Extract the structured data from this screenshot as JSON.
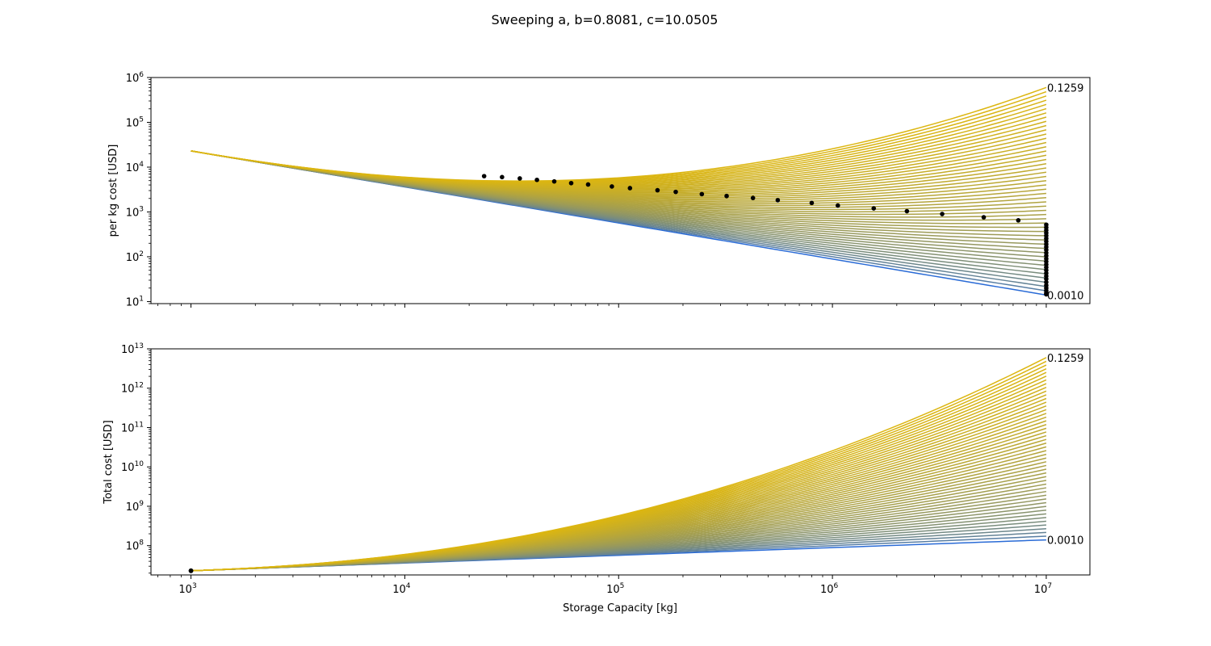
{
  "figure": {
    "title": "Sweeping a, b=0.8081, c=10.0505",
    "xlabel": "Storage Capacity [kg]"
  },
  "chart_data": [
    {
      "type": "line",
      "panel": "top",
      "ylabel": "per kg cost [USD]",
      "xscale": "log",
      "yscale": "log",
      "xlim": [
        650,
        16000000
      ],
      "ylim": [
        9,
        1000000
      ],
      "xticks": [
        {
          "base": "10",
          "exp": "3",
          "v": 1000
        },
        {
          "base": "10",
          "exp": "4",
          "v": 10000
        },
        {
          "base": "10",
          "exp": "5",
          "v": 100000
        },
        {
          "base": "10",
          "exp": "6",
          "v": 1000000
        },
        {
          "base": "10",
          "exp": "7",
          "v": 10000000
        }
      ],
      "yticks": [
        {
          "base": "10",
          "exp": "1",
          "v": 10
        },
        {
          "base": "10",
          "exp": "2",
          "v": 100
        },
        {
          "base": "10",
          "exp": "3",
          "v": 1000
        },
        {
          "base": "10",
          "exp": "4",
          "v": 10000
        },
        {
          "base": "10",
          "exp": "5",
          "v": 100000
        },
        {
          "base": "10",
          "exp": "6",
          "v": 1000000
        }
      ],
      "show_x_tick_labels": false,
      "annotations": [
        {
          "text": "0.1259",
          "x": 10000000,
          "y": 600000
        },
        {
          "text": "0.0010",
          "x": 10000000,
          "y": 14
        }
      ],
      "sweep": {
        "x_range": [
          1000,
          10000000
        ],
        "a_range": [
          0.001,
          0.1259
        ],
        "b": 0.8081,
        "c": 10.0505,
        "count": 50,
        "start_values": [
          23000,
          23000
        ],
        "end_values": [
          14,
          600000
        ],
        "color_low": "#2a6bd6",
        "color_high": "#dcb611"
      },
      "scatter": {
        "color": "#000000",
        "points": [
          [
            23500,
            6300
          ],
          [
            28500,
            6000
          ],
          [
            34500,
            5600
          ],
          [
            41500,
            5200
          ],
          [
            50000,
            4800
          ],
          [
            60000,
            4400
          ],
          [
            72000,
            4100
          ],
          [
            93000,
            3700
          ],
          [
            113000,
            3400
          ],
          [
            152000,
            3050
          ],
          [
            185000,
            2800
          ],
          [
            245000,
            2500
          ],
          [
            320000,
            2270
          ],
          [
            425000,
            2050
          ],
          [
            555000,
            1830
          ],
          [
            800000,
            1590
          ],
          [
            1060000,
            1390
          ],
          [
            1560000,
            1200
          ],
          [
            2230000,
            1040
          ],
          [
            3260000,
            900
          ],
          [
            5100000,
            760
          ],
          [
            7400000,
            650
          ],
          [
            10000000,
            520
          ],
          [
            10000000,
            450
          ],
          [
            10000000,
            390
          ],
          [
            10000000,
            340
          ],
          [
            10000000,
            295
          ],
          [
            10000000,
            255
          ],
          [
            10000000,
            220
          ],
          [
            10000000,
            190
          ],
          [
            10000000,
            165
          ],
          [
            10000000,
            142
          ],
          [
            10000000,
            122
          ],
          [
            10000000,
            105
          ],
          [
            10000000,
            90
          ],
          [
            10000000,
            78
          ],
          [
            10000000,
            67
          ],
          [
            10000000,
            58
          ],
          [
            10000000,
            50
          ],
          [
            10000000,
            43
          ],
          [
            10000000,
            37
          ],
          [
            10000000,
            32
          ],
          [
            10000000,
            27
          ],
          [
            10000000,
            23
          ],
          [
            10000000,
            20
          ],
          [
            10000000,
            17.5
          ],
          [
            10000000,
            15.5
          ],
          [
            10000000,
            14.5
          ]
        ]
      }
    },
    {
      "type": "line",
      "panel": "bottom",
      "ylabel": "Total cost [USD]",
      "xscale": "log",
      "yscale": "log",
      "xlim": [
        650,
        16000000
      ],
      "ylim": [
        18000000,
        10000000000000
      ],
      "xticks": [
        {
          "base": "10",
          "exp": "3",
          "v": 1000
        },
        {
          "base": "10",
          "exp": "4",
          "v": 10000
        },
        {
          "base": "10",
          "exp": "5",
          "v": 100000
        },
        {
          "base": "10",
          "exp": "6",
          "v": 1000000
        },
        {
          "base": "10",
          "exp": "7",
          "v": 10000000
        }
      ],
      "yticks": [
        {
          "base": "10",
          "exp": "8",
          "v": 100000000
        },
        {
          "base": "10",
          "exp": "9",
          "v": 1000000000
        },
        {
          "base": "10",
          "exp": "10",
          "v": 10000000000
        },
        {
          "base": "10",
          "exp": "11",
          "v": 100000000000
        },
        {
          "base": "10",
          "exp": "12",
          "v": 1000000000000
        },
        {
          "base": "10",
          "exp": "13",
          "v": 10000000000000
        }
      ],
      "show_x_tick_labels": true,
      "annotations": [
        {
          "text": "0.1259",
          "x": 10000000,
          "y": 6000000000000
        },
        {
          "text": "0.0010",
          "x": 10000000,
          "y": 140000000
        }
      ],
      "sweep": {
        "x_range": [
          1000,
          10000000
        ],
        "a_range": [
          0.001,
          0.1259
        ],
        "b": 0.8081,
        "c": 10.0505,
        "count": 50,
        "start_values": [
          23000000,
          23000000
        ],
        "end_values": [
          140000000,
          6000000000000
        ],
        "color_low": "#2a6bd6",
        "color_high": "#dcb611"
      },
      "scatter": {
        "color": "#000000",
        "points": [
          [
            1000,
            23000000
          ],
          [
            1000,
            23200000
          ],
          [
            1000,
            22800000
          ]
        ]
      }
    }
  ]
}
